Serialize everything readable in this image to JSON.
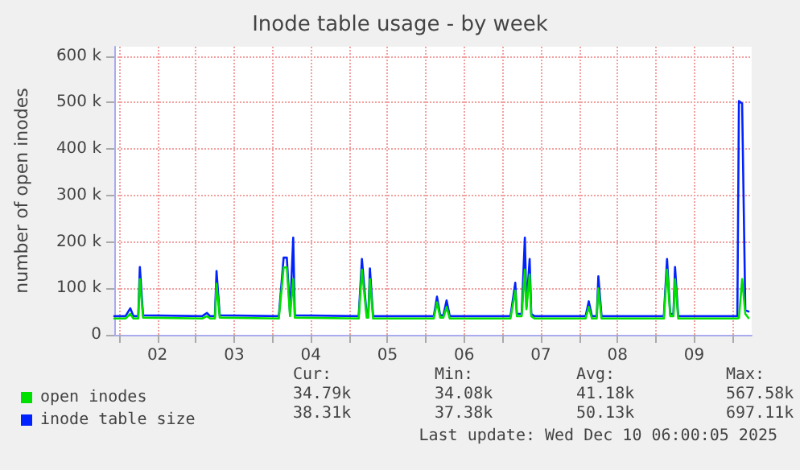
{
  "chart_data": {
    "type": "line",
    "title": "Inode table usage - by week",
    "ylabel": "number of open inodes",
    "x": [
      "2025-12-01T22:30",
      "2025-12-02T02:00",
      "2025-12-02T03:30",
      "2025-12-02T04:30",
      "2025-12-02T06:00",
      "2025-12-02T06:30",
      "2025-12-02T07:30",
      "2025-12-03T02:00",
      "2025-12-03T03:30",
      "2025-12-03T04:30",
      "2025-12-03T06:00",
      "2025-12-03T06:30",
      "2025-12-03T07:30",
      "2025-12-04T02:00",
      "2025-12-04T03:30",
      "2025-12-04T04:30",
      "2025-12-04T05:30",
      "2025-12-04T06:30",
      "2025-12-04T07:00",
      "2025-12-05T03:00",
      "2025-12-05T04:00",
      "2025-12-05T05:30",
      "2025-12-05T06:00",
      "2025-12-05T06:30",
      "2025-12-05T07:30",
      "2025-12-06T02:30",
      "2025-12-06T03:30",
      "2025-12-06T04:30",
      "2025-12-06T05:30",
      "2025-12-06T06:30",
      "2025-12-06T07:30",
      "2025-12-07T02:30",
      "2025-12-07T04:00",
      "2025-12-07T04:30",
      "2025-12-07T06:00",
      "2025-12-07T07:00",
      "2025-12-07T07:30",
      "2025-12-07T08:30",
      "2025-12-07T09:00",
      "2025-12-07T10:00",
      "2025-12-08T02:00",
      "2025-12-08T03:00",
      "2025-12-08T04:00",
      "2025-12-08T05:30",
      "2025-12-08T06:00",
      "2025-12-08T07:00",
      "2025-12-09T02:30",
      "2025-12-09T03:30",
      "2025-12-09T04:30",
      "2025-12-09T05:30",
      "2025-12-09T06:00",
      "2025-12-09T07:00",
      "2025-12-10T01:30",
      "2025-12-10T02:00",
      "2025-12-10T03:00",
      "2025-12-10T04:00",
      "2025-12-10T05:00"
    ],
    "series": [
      {
        "name": "open inodes",
        "color": "#00e000",
        "values": [
          35000,
          35000,
          45000,
          35000,
          35000,
          120000,
          37000,
          35000,
          40000,
          35000,
          35000,
          110000,
          37000,
          35000,
          145000,
          145000,
          40000,
          120000,
          37000,
          35000,
          140000,
          37000,
          37000,
          120000,
          35000,
          35000,
          70000,
          37000,
          37000,
          60000,
          35000,
          35000,
          95000,
          40000,
          40000,
          140000,
          55000,
          130000,
          40000,
          35000,
          35000,
          60000,
          35000,
          35000,
          100000,
          35000,
          35000,
          140000,
          40000,
          40000,
          120000,
          35000,
          35000,
          36000,
          120000,
          45000,
          36000
        ]
      },
      {
        "name": "inode table size",
        "color": "#0022ff",
        "values": [
          40000,
          40000,
          57000,
          40000,
          40000,
          146000,
          42000,
          40000,
          47000,
          40000,
          40000,
          137000,
          42000,
          40000,
          166000,
          166000,
          45000,
          209000,
          42000,
          40000,
          163000,
          42000,
          42000,
          143000,
          40000,
          40000,
          82000,
          42000,
          42000,
          74000,
          40000,
          40000,
          112000,
          45000,
          45000,
          209000,
          60000,
          163000,
          45000,
          40000,
          40000,
          72000,
          40000,
          40000,
          126000,
          40000,
          40000,
          163000,
          45000,
          45000,
          146000,
          40000,
          40000,
          503000,
          498000,
          53000,
          50000
        ]
      }
    ],
    "xlim": [
      "2025-12-01T22:30",
      "2025-12-10T06:00"
    ],
    "xticks": [
      {
        "value": "2025-12-02T00:00",
        "label": null
      },
      {
        "value": "2025-12-02T12:00",
        "label": "02"
      },
      {
        "value": "2025-12-03T00:00",
        "label": null
      },
      {
        "value": "2025-12-03T12:00",
        "label": "03"
      },
      {
        "value": "2025-12-04T00:00",
        "label": null
      },
      {
        "value": "2025-12-04T12:00",
        "label": "04"
      },
      {
        "value": "2025-12-05T00:00",
        "label": null
      },
      {
        "value": "2025-12-05T12:00",
        "label": "05"
      },
      {
        "value": "2025-12-06T00:00",
        "label": null
      },
      {
        "value": "2025-12-06T12:00",
        "label": "06"
      },
      {
        "value": "2025-12-07T00:00",
        "label": null
      },
      {
        "value": "2025-12-07T12:00",
        "label": "07"
      },
      {
        "value": "2025-12-08T00:00",
        "label": null
      },
      {
        "value": "2025-12-08T12:00",
        "label": "08"
      },
      {
        "value": "2025-12-09T00:00",
        "label": null
      },
      {
        "value": "2025-12-09T12:00",
        "label": "09"
      },
      {
        "value": "2025-12-10T00:00",
        "label": null
      }
    ],
    "ylim": [
      0,
      620000
    ],
    "yticks": [
      {
        "value": 0,
        "label": "0"
      },
      {
        "value": 100000,
        "label": "100 k"
      },
      {
        "value": 200000,
        "label": "200 k"
      },
      {
        "value": 300000,
        "label": "300 k"
      },
      {
        "value": 400000,
        "label": "400 k"
      },
      {
        "value": 500000,
        "label": "500 k"
      },
      {
        "value": 600000,
        "label": "600 k"
      }
    ],
    "grid": true,
    "legend": "bottom left",
    "marker": "none",
    "line_style": "solid",
    "annotations": [
      "Cur:",
      "Min:",
      "Avg:",
      "Max:",
      "34.79k",
      "34.08k",
      "41.18k",
      "567.58k",
      "38.31k",
      "37.38k",
      "50.13k",
      "697.11k",
      "Last update: Wed Dec 10 06:00:05 2025"
    ]
  }
}
